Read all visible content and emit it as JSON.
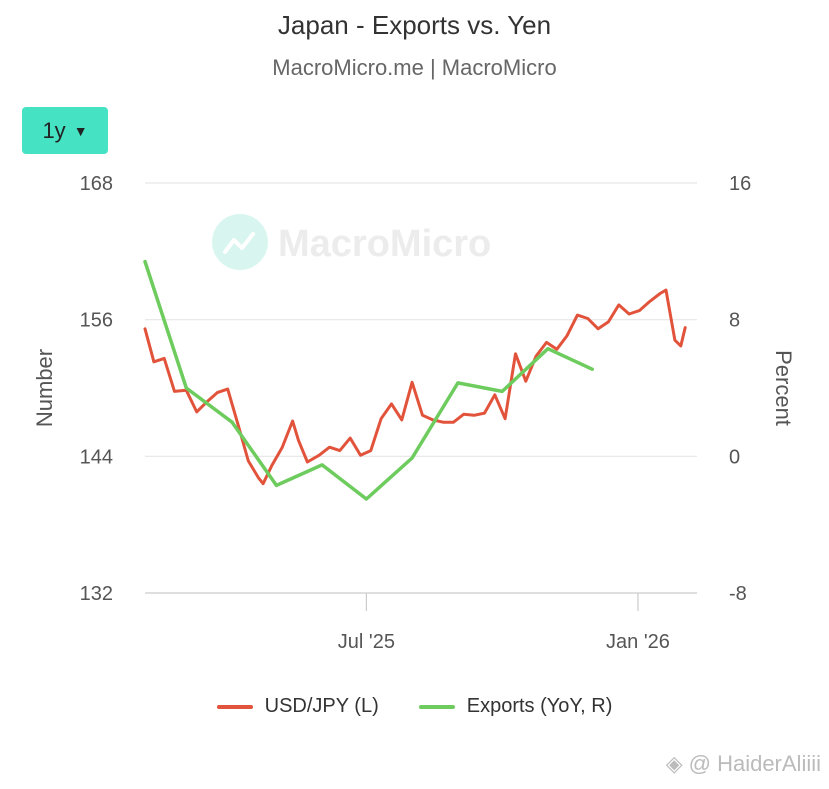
{
  "chart_data": {
    "type": "line",
    "title": "Japan - Exports vs. Yen",
    "subtitle": "MacroMicro.me | MacroMicro",
    "range_selector": "1y",
    "watermark": "MacroMicro",
    "left_axis": {
      "label": "Number",
      "ticks": [
        "168",
        "156",
        "144",
        "132"
      ],
      "range": [
        132,
        168
      ]
    },
    "right_axis": {
      "label": "Percent",
      "ticks": [
        "16",
        "8",
        "0",
        "-8"
      ],
      "range": [
        -8,
        16
      ]
    },
    "x_ticks": [
      "Jul '25",
      "Jan '26"
    ],
    "x_range": [
      "2025-02-01",
      "2026-02-10"
    ],
    "grid": true,
    "legend_position": "bottom",
    "series": [
      {
        "name": "USD/JPY (L)",
        "axis": "left",
        "color": "#e2533b",
        "points": [
          [
            "2025-02-01",
            155.2
          ],
          [
            "2025-02-07",
            152.3
          ],
          [
            "2025-02-14",
            152.6
          ],
          [
            "2025-02-21",
            149.7
          ],
          [
            "2025-03-01",
            149.8
          ],
          [
            "2025-03-08",
            147.9
          ],
          [
            "2025-03-15",
            148.8
          ],
          [
            "2025-03-22",
            149.6
          ],
          [
            "2025-03-29",
            149.9
          ],
          [
            "2025-04-05",
            146.8
          ],
          [
            "2025-04-12",
            143.6
          ],
          [
            "2025-04-19",
            142.1
          ],
          [
            "2025-04-22",
            141.6
          ],
          [
            "2025-04-28",
            143.2
          ],
          [
            "2025-05-05",
            144.8
          ],
          [
            "2025-05-12",
            147.1
          ],
          [
            "2025-05-16",
            145.4
          ],
          [
            "2025-05-22",
            143.5
          ],
          [
            "2025-05-30",
            144.1
          ],
          [
            "2025-06-06",
            144.8
          ],
          [
            "2025-06-13",
            144.5
          ],
          [
            "2025-06-20",
            145.6
          ],
          [
            "2025-06-27",
            144.1
          ],
          [
            "2025-07-04",
            144.5
          ],
          [
            "2025-07-11",
            147.3
          ],
          [
            "2025-07-18",
            148.6
          ],
          [
            "2025-07-25",
            147.2
          ],
          [
            "2025-08-01",
            150.5
          ],
          [
            "2025-08-08",
            147.6
          ],
          [
            "2025-08-15",
            147.2
          ],
          [
            "2025-08-22",
            147.0
          ],
          [
            "2025-08-29",
            147.0
          ],
          [
            "2025-09-05",
            147.7
          ],
          [
            "2025-09-12",
            147.6
          ],
          [
            "2025-09-19",
            147.8
          ],
          [
            "2025-09-26",
            149.4
          ],
          [
            "2025-10-03",
            147.3
          ],
          [
            "2025-10-10",
            153.0
          ],
          [
            "2025-10-17",
            150.6
          ],
          [
            "2025-10-24",
            152.8
          ],
          [
            "2025-10-31",
            154.0
          ],
          [
            "2025-11-07",
            153.4
          ],
          [
            "2025-11-14",
            154.6
          ],
          [
            "2025-11-21",
            156.4
          ],
          [
            "2025-11-28",
            156.1
          ],
          [
            "2025-12-05",
            155.2
          ],
          [
            "2025-12-12",
            155.8
          ],
          [
            "2025-12-19",
            157.3
          ],
          [
            "2025-12-26",
            156.5
          ],
          [
            "2026-01-02",
            156.8
          ],
          [
            "2026-01-09",
            157.6
          ],
          [
            "2026-01-16",
            158.3
          ],
          [
            "2026-01-20",
            158.6
          ],
          [
            "2026-01-26",
            154.2
          ],
          [
            "2026-01-30",
            153.7
          ],
          [
            "2026-02-02",
            155.3
          ]
        ]
      },
      {
        "name": "Exports (YoY, R)",
        "axis": "right",
        "color": "#6dcc5d",
        "points": [
          [
            "2025-02-01",
            11.4
          ],
          [
            "2025-03-01",
            4.0
          ],
          [
            "2025-04-01",
            2.0
          ],
          [
            "2025-05-01",
            -1.7
          ],
          [
            "2025-06-01",
            -0.5
          ],
          [
            "2025-07-01",
            -2.5
          ],
          [
            "2025-08-01",
            -0.1
          ],
          [
            "2025-09-01",
            4.3
          ],
          [
            "2025-10-01",
            3.8
          ],
          [
            "2025-11-01",
            6.3
          ],
          [
            "2025-12-01",
            5.1
          ]
        ]
      }
    ]
  },
  "credit": "@ HaiderAliiii"
}
